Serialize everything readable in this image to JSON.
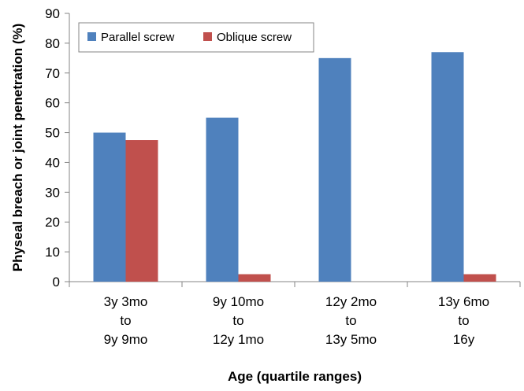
{
  "chart_data": {
    "type": "bar",
    "categories": [
      [
        "3y 3mo",
        "to",
        "9y 9mo"
      ],
      [
        "9y 10mo",
        "to",
        "12y 1mo"
      ],
      [
        "12y 2mo",
        "to",
        "13y 5mo"
      ],
      [
        "13y 6mo",
        "to",
        "16y"
      ]
    ],
    "series": [
      {
        "name": "Parallel screw",
        "values": [
          50,
          55,
          75,
          77
        ],
        "color": "#4f81bd"
      },
      {
        "name": "Oblique screw",
        "values": [
          47.5,
          2.5,
          0,
          2.5
        ],
        "color": "#c0504d"
      }
    ],
    "xlabel": "Age (quartile ranges)",
    "ylabel": "Physeal breach or joint penetration (%)",
    "ylim": [
      0,
      90
    ],
    "yticks": [
      0,
      10,
      20,
      30,
      40,
      50,
      60,
      70,
      80,
      90
    ],
    "grid": false,
    "legend_position": "top-left"
  }
}
